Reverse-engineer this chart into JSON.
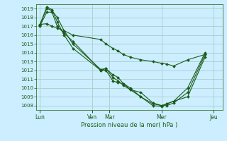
{
  "background_color": "#cceeff",
  "grid_color": "#aacccc",
  "line_color": "#1a5c1a",
  "marker_color": "#1a5c1a",
  "xlabel": "Pression niveau de la mer( hPa )",
  "ylim": [
    1007.5,
    1019.5
  ],
  "yticks": [
    1008,
    1009,
    1010,
    1011,
    1012,
    1013,
    1014,
    1015,
    1016,
    1017,
    1018,
    1019
  ],
  "xtick_labels": [
    "Lun",
    "Ven",
    "Mar",
    "Mer",
    "Jeu"
  ],
  "xtick_positions": [
    0.0,
    3.0,
    4.0,
    7.0,
    10.0
  ],
  "xlim": [
    -0.2,
    10.5
  ],
  "series": [
    [
      1017.0,
      1018.6,
      1018.6,
      1017.0,
      1016.2,
      1015.3,
      1012.0,
      1012.2,
      1011.5,
      1011.2,
      1010.5,
      1010.0,
      1009.0,
      1008.0,
      1007.9,
      1008.2,
      1008.5,
      1009.0,
      1013.5
    ],
    [
      1017.2,
      1019.0,
      1018.8,
      1018.0,
      1016.5,
      1015.0,
      1012.1,
      1012.2,
      1011.2,
      1010.8,
      1010.3,
      1009.8,
      1009.0,
      1008.2,
      1008.0,
      1008.0,
      1008.3,
      1009.5,
      1013.8
    ],
    [
      1017.1,
      1019.2,
      1018.9,
      1017.5,
      1016.0,
      1014.5,
      1012.0,
      1012.0,
      1010.8,
      1010.6,
      1010.5,
      1009.8,
      1009.5,
      1008.3,
      1008.0,
      1008.2,
      1008.5,
      1010.0,
      1014.0
    ],
    [
      1017.2,
      1017.3,
      1017.0,
      1016.8,
      1016.5,
      1016.0,
      1015.5,
      1015.0,
      1014.5,
      1014.2,
      1013.8,
      1013.5,
      1013.2,
      1013.0,
      1012.8,
      1012.7,
      1012.5,
      1013.2,
      1013.8
    ]
  ],
  "x_positions": [
    0.0,
    0.4,
    0.7,
    1.0,
    1.4,
    1.9,
    3.5,
    3.8,
    4.2,
    4.5,
    4.8,
    5.2,
    5.8,
    6.5,
    7.0,
    7.3,
    7.7,
    8.5,
    9.5
  ]
}
